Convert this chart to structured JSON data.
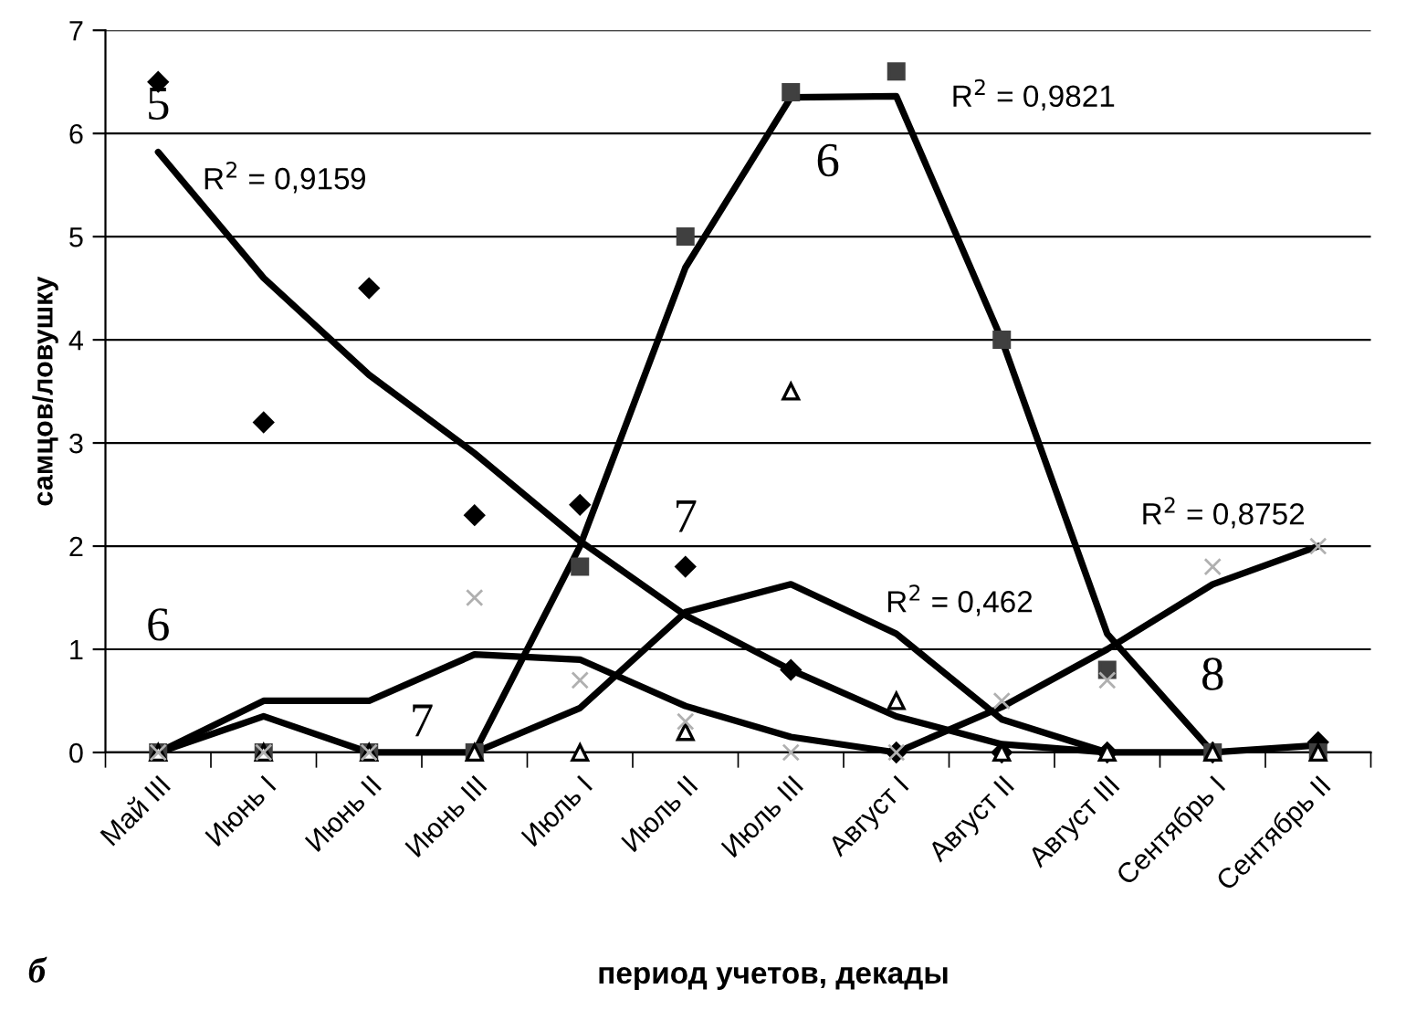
{
  "chart_data": {
    "type": "scatter",
    "xlabel": "период учетов, декады",
    "ylabel": "самцов/ловушку",
    "categories": [
      "Май III",
      "Июнь I",
      "Июнь II",
      "Июнь III",
      "Июль I",
      "Июль II",
      "Июль III",
      "Август I",
      "Август II",
      "Август III",
      "Сентябрь I",
      "Сентябрь II"
    ],
    "ylim": [
      0,
      7
    ],
    "yticks": [
      0,
      1,
      2,
      3,
      4,
      5,
      6,
      7
    ],
    "grid": "y",
    "series": [
      {
        "marker": "diamond",
        "color": "#000000",
        "values": [
          6.5,
          3.2,
          4.5,
          2.3,
          2.4,
          1.8,
          0.8,
          0,
          0,
          0,
          0,
          0.1
        ]
      },
      {
        "marker": "square",
        "color": "#404040",
        "values": [
          0,
          0,
          0,
          0,
          1.8,
          5.0,
          6.4,
          6.6,
          4.0,
          0.8,
          0,
          0
        ]
      },
      {
        "marker": "triangle",
        "color": "#000000",
        "values": [
          0,
          0,
          0,
          0,
          0,
          0.2,
          3.5,
          0.5,
          0,
          0,
          0,
          0
        ]
      },
      {
        "marker": "cross",
        "color": "#b0b0b0",
        "values": [
          0,
          0,
          0,
          1.5,
          0.7,
          0.3,
          0,
          0,
          0.5,
          0.7,
          1.8,
          2.0
        ]
      },
      {
        "type": "line",
        "marker": "none",
        "color": "#000000",
        "values": [
          5.82,
          4.6,
          3.66,
          2.9,
          2.05,
          1.33,
          0.8,
          0.35,
          0.08,
          0,
          0,
          0.07
        ]
      },
      {
        "type": "line",
        "marker": "none",
        "color": "#000000",
        "values": [
          null,
          null,
          null,
          0,
          2.0,
          4.7,
          6.35,
          6.36,
          4.0,
          1.15,
          0,
          null
        ]
      },
      {
        "type": "line",
        "marker": "none",
        "color": "#000000",
        "values": [
          0,
          0.5,
          0.5,
          0.95,
          0.9,
          0.45,
          0.15,
          0,
          0.44,
          1.0,
          1.63,
          2.0
        ]
      },
      {
        "type": "line",
        "marker": "none",
        "color": "#000000",
        "values": [
          0,
          0.35,
          0,
          0,
          0.43,
          1.36,
          1.63,
          1.15,
          0.32,
          0,
          null,
          null
        ]
      }
    ],
    "annotations": [
      "5",
      "R$^{2}$ = 0,9159",
      "6",
      "7",
      "6",
      "R$^{2}$ = 0,9821",
      "7",
      "R$^{2}$ = 0,462",
      "R$^{2}$ = 0,8752",
      "8",
      "б"
    ]
  }
}
